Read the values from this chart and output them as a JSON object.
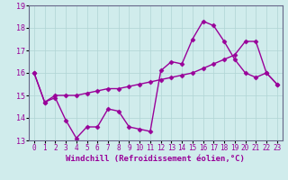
{
  "x_values": [
    0,
    1,
    2,
    3,
    4,
    5,
    6,
    7,
    8,
    9,
    10,
    11,
    12,
    13,
    14,
    15,
    16,
    17,
    18,
    19,
    20,
    21,
    22,
    23
  ],
  "y_line1": [
    16.0,
    14.7,
    14.9,
    13.9,
    13.1,
    13.6,
    13.6,
    14.4,
    14.3,
    13.6,
    13.5,
    13.4,
    16.1,
    16.5,
    16.4,
    17.5,
    18.3,
    18.1,
    17.4,
    16.6,
    16.0,
    15.8,
    16.0,
    15.5
  ],
  "y_line2": [
    16.0,
    14.7,
    15.0,
    15.0,
    15.0,
    15.1,
    15.2,
    15.3,
    15.3,
    15.4,
    15.5,
    15.6,
    15.7,
    15.8,
    15.9,
    16.0,
    16.2,
    16.4,
    16.6,
    16.8,
    17.4,
    17.4,
    16.0,
    15.5
  ],
  "ylim": [
    13.0,
    19.0
  ],
  "xlim": [
    -0.5,
    23.5
  ],
  "yticks": [
    13,
    14,
    15,
    16,
    17,
    18,
    19
  ],
  "xtick_labels": [
    "0",
    "1",
    "2",
    "3",
    "4",
    "5",
    "6",
    "7",
    "8",
    "9",
    "10",
    "11",
    "12",
    "13",
    "14",
    "15",
    "16",
    "17",
    "18",
    "19",
    "20",
    "21",
    "22",
    "23"
  ],
  "xlabel": "Windchill (Refroidissement éolien,°C)",
  "line_color": "#990099",
  "bg_color": "#d0ecec",
  "grid_color": "#b0d4d4",
  "marker": "D",
  "marker_size": 2.5,
  "line_width": 1.0,
  "xlabel_fontsize": 6.5,
  "tick_fontsize": 6.0
}
